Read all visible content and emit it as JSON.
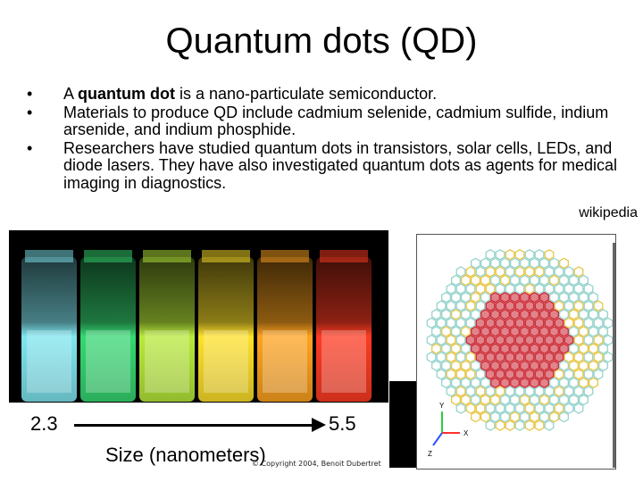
{
  "title": "Quantum dots (QD)",
  "bullets": [
    {
      "pre": "A ",
      "bold": "quantum dot",
      "post": " is a nano-particulate semiconductor."
    },
    {
      "pre": "Materials to produce QD include cadmium selenide, cadmium sulfide, indium arsenide, and indium phosphide.",
      "bold": "",
      "post": ""
    },
    {
      "pre": "Researchers have studied quantum dots in transistors, solar cells, LEDs, and diode lasers. They have also investigated quantum dots as agents for medical imaging in diagnostics.",
      "bold": "",
      "post": ""
    }
  ],
  "bullet_glyph": "•",
  "source": "wikipedia",
  "photo": {
    "size_min": "2.3",
    "size_max": "5.5",
    "size_label": "Size (nanometers)",
    "copyright": "© Copyright 2004, Benoit Dubertret",
    "vial_colors": [
      "#7fe6f0",
      "#36d872",
      "#b8ea3a",
      "#ffe12a",
      "#ffa31f",
      "#ff3b22"
    ]
  },
  "model": {
    "axis_y": "Y",
    "axis_x": "X",
    "axis_z": "Z",
    "colors": {
      "core": "#c81e2a",
      "shell": "#8fd0c8",
      "accent": "#e6c23a"
    }
  }
}
